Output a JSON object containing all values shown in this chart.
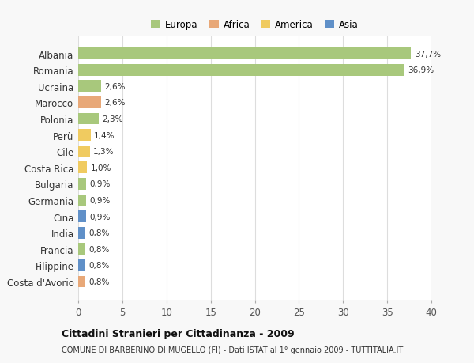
{
  "categories": [
    "Albania",
    "Romania",
    "Ucraina",
    "Marocco",
    "Polonia",
    "Perù",
    "Cile",
    "Costa Rica",
    "Bulgaria",
    "Germania",
    "Cina",
    "India",
    "Francia",
    "Filippine",
    "Costa d'Avorio"
  ],
  "values": [
    37.7,
    36.9,
    2.6,
    2.6,
    2.3,
    1.4,
    1.3,
    1.0,
    0.9,
    0.9,
    0.9,
    0.8,
    0.8,
    0.8,
    0.8
  ],
  "labels": [
    "37,7%",
    "36,9%",
    "2,6%",
    "2,6%",
    "2,3%",
    "1,4%",
    "1,3%",
    "1,0%",
    "0,9%",
    "0,9%",
    "0,9%",
    "0,8%",
    "0,8%",
    "0,8%",
    "0,8%"
  ],
  "continents": [
    "Europa",
    "Europa",
    "Europa",
    "Africa",
    "Europa",
    "America",
    "America",
    "America",
    "Europa",
    "Europa",
    "Asia",
    "Asia",
    "Europa",
    "Asia",
    "Africa"
  ],
  "continent_colors": {
    "Europa": "#a8c87c",
    "Africa": "#e8a878",
    "America": "#f0cb60",
    "Asia": "#6090c8"
  },
  "legend_items": [
    "Europa",
    "Africa",
    "America",
    "Asia"
  ],
  "legend_colors": [
    "#a8c87c",
    "#e8a878",
    "#f0cb60",
    "#6090c8"
  ],
  "background_color": "#f8f8f8",
  "plot_bg_color": "#ffffff",
  "title": "Cittadini Stranieri per Cittadinanza - 2009",
  "subtitle": "COMUNE DI BARBERINO DI MUGELLO (FI) - Dati ISTAT al 1° gennaio 2009 - TUTTITALIA.IT",
  "xlim": [
    0,
    40
  ],
  "xticks": [
    0,
    5,
    10,
    15,
    20,
    25,
    30,
    35,
    40
  ],
  "grid_color": "#dddddd"
}
